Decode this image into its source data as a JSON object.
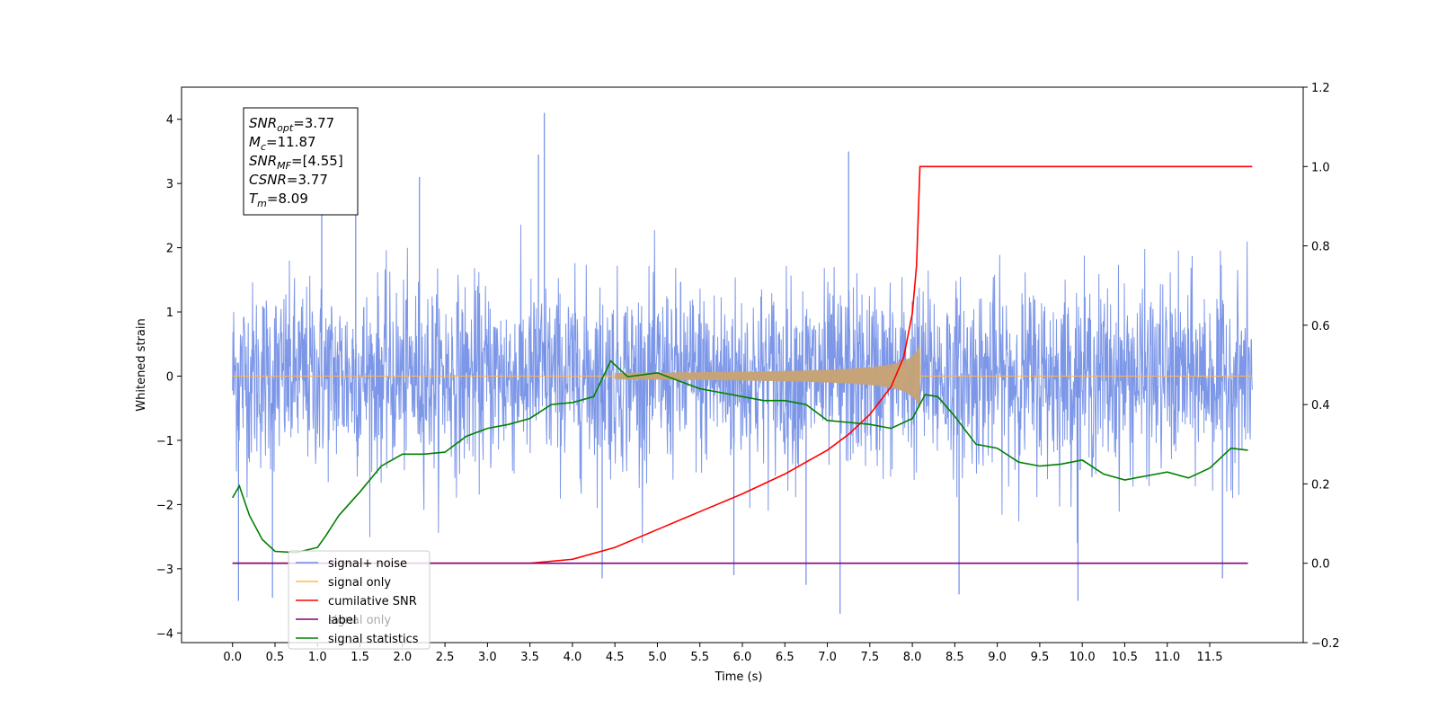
{
  "chart_data": {
    "type": "line",
    "xlabel": "Time (s)",
    "ylabel": "Whitened strain",
    "xlim": [
      -0.6,
      12.6
    ],
    "ylim": [
      -4.15,
      4.5
    ],
    "ylim_right": [
      -0.2,
      1.2
    ],
    "x_ticks": [
      0.0,
      0.5,
      1.0,
      1.5,
      2.0,
      2.5,
      3.0,
      3.5,
      4.0,
      4.5,
      5.0,
      5.5,
      6.0,
      6.5,
      7.0,
      7.5,
      8.0,
      8.5,
      9.0,
      9.5,
      10.0,
      10.5,
      11.0,
      11.5
    ],
    "x_tick_labels": [
      "0.0",
      "0.5",
      "1.0",
      "1.5",
      "2.0",
      "2.5",
      "3.0",
      "3.5",
      "4.0",
      "4.5",
      "5.0",
      "5.5",
      "6.0",
      "6.5",
      "7.0",
      "7.5",
      "8.0",
      "8.5",
      "9.0",
      "9.5",
      "10.0",
      "10.5",
      "11.0",
      "11.5"
    ],
    "y_ticks": [
      -4,
      -3,
      -2,
      -1,
      0,
      1,
      2,
      3,
      4
    ],
    "y_tick_labels": [
      "−4",
      "−3",
      "−2",
      "−1",
      "0",
      "1",
      "2",
      "3",
      "4"
    ],
    "y_ticks_right": [
      -0.2,
      0.0,
      0.2,
      0.4,
      0.6,
      0.8,
      1.0,
      1.2
    ],
    "y_tick_labels_right": [
      "−0.2",
      "0.0",
      "0.2",
      "0.4",
      "0.6",
      "0.8",
      "1.0",
      "1.2"
    ],
    "annotation": [
      {
        "base": "SNR",
        "sub": "opt",
        "value": "=3.77"
      },
      {
        "base": "M",
        "sub": "c",
        "value": "=11.87"
      },
      {
        "base": "SNR",
        "sub": "MF",
        "value": "=[4.55]"
      },
      {
        "base": "CSNR",
        "sub": "",
        "value": "=3.77"
      },
      {
        "base": "T",
        "sub": "m",
        "value": "=8.09"
      }
    ],
    "legend_position": "lower-left",
    "legend": [
      {
        "label": "signal+ noise",
        "color": "#6f8ce6"
      },
      {
        "label": "signal only",
        "color": "#ffb84d"
      },
      {
        "label": "cumilative SNR",
        "color": "#ff0000"
      },
      {
        "label": "label",
        "color": "#800080"
      },
      {
        "label": "signal statistics",
        "color": "#008000"
      }
    ],
    "hidden_legend_text": "signal only",
    "series": [
      {
        "name": "signal+ noise",
        "axis": "left",
        "color": "#6f8ce6",
        "x_range": [
          0.0,
          12.0
        ],
        "envelope_typical": [
          -2.1,
          2.3
        ],
        "spikes": [
          {
            "x": 0.07,
            "y": -3.5
          },
          {
            "x": 0.47,
            "y": -3.45
          },
          {
            "x": 3.67,
            "y": 4.1
          },
          {
            "x": 3.6,
            "y": 3.45
          },
          {
            "x": 1.45,
            "y": 3.3
          },
          {
            "x": 4.35,
            "y": -3.15
          },
          {
            "x": 5.9,
            "y": -3.1
          },
          {
            "x": 6.75,
            "y": -3.25
          },
          {
            "x": 7.15,
            "y": -3.7
          },
          {
            "x": 8.55,
            "y": -3.4
          },
          {
            "x": 9.95,
            "y": -3.5
          },
          {
            "x": 11.65,
            "y": -3.15
          },
          {
            "x": 7.25,
            "y": 3.5
          },
          {
            "x": 1.05,
            "y": 3.0
          },
          {
            "x": 2.2,
            "y": 3.1
          }
        ]
      },
      {
        "name": "signal only",
        "axis": "left",
        "color": "#ffb84d",
        "x_range": [
          0.0,
          12.0
        ],
        "chirp": {
          "start_x": 4.5,
          "merge_x": 8.09,
          "peak_amplitude": 0.5
        }
      },
      {
        "name": "cumilative SNR",
        "axis": "right",
        "color": "#ff0000",
        "x": [
          0.0,
          3.0,
          3.5,
          4.0,
          4.5,
          5.0,
          5.5,
          6.0,
          6.5,
          7.0,
          7.25,
          7.5,
          7.75,
          7.9,
          8.0,
          8.05,
          8.09,
          12.0
        ],
        "y": [
          0.0,
          0.0,
          0.0,
          0.01,
          0.04,
          0.085,
          0.13,
          0.175,
          0.225,
          0.285,
          0.325,
          0.375,
          0.445,
          0.52,
          0.63,
          0.75,
          1.0,
          1.0
        ]
      },
      {
        "name": "label",
        "axis": "right",
        "color": "#800080",
        "x": [
          0.0,
          11.95
        ],
        "y": [
          0.0,
          0.0
        ]
      },
      {
        "name": "signal statistics",
        "axis": "right",
        "color": "#008000",
        "x": [
          0.0,
          0.08,
          0.2,
          0.35,
          0.5,
          0.75,
          1.0,
          1.1,
          1.25,
          1.5,
          1.75,
          2.0,
          2.25,
          2.5,
          2.75,
          3.0,
          3.25,
          3.5,
          3.75,
          4.0,
          4.25,
          4.45,
          4.65,
          5.0,
          5.25,
          5.5,
          5.75,
          6.0,
          6.25,
          6.5,
          6.75,
          7.0,
          7.25,
          7.5,
          7.75,
          8.0,
          8.15,
          8.3,
          8.5,
          8.75,
          9.0,
          9.25,
          9.5,
          9.75,
          10.0,
          10.25,
          10.5,
          10.75,
          11.0,
          11.25,
          11.5,
          11.75,
          11.95
        ],
        "y": [
          0.165,
          0.195,
          0.12,
          0.06,
          0.03,
          0.027,
          0.04,
          0.07,
          0.12,
          0.18,
          0.245,
          0.275,
          0.275,
          0.28,
          0.32,
          0.34,
          0.35,
          0.365,
          0.4,
          0.405,
          0.42,
          0.51,
          0.47,
          0.48,
          0.46,
          0.44,
          0.43,
          0.42,
          0.41,
          0.41,
          0.4,
          0.36,
          0.355,
          0.35,
          0.34,
          0.365,
          0.425,
          0.42,
          0.37,
          0.3,
          0.29,
          0.255,
          0.245,
          0.25,
          0.26,
          0.225,
          0.21,
          0.22,
          0.23,
          0.215,
          0.24,
          0.29,
          0.285
        ]
      }
    ]
  }
}
